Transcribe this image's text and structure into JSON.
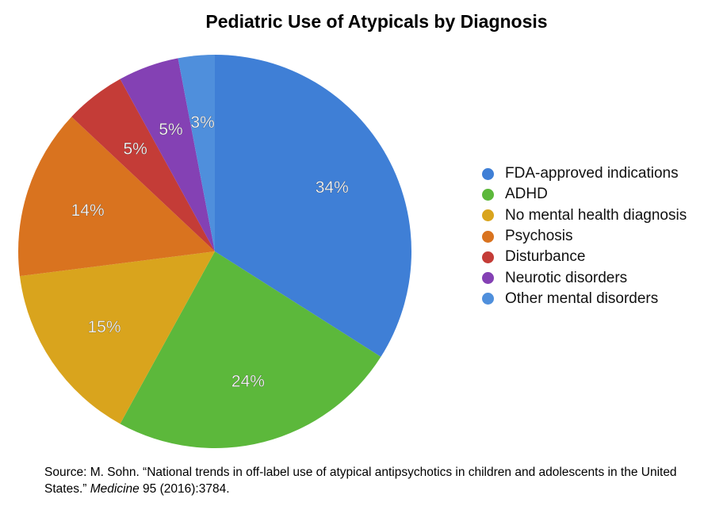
{
  "chart_data": {
    "type": "pie",
    "title": "Pediatric Use of Atypicals by Diagnosis",
    "slices": [
      {
        "label": "FDA-approved indications",
        "value": 34,
        "display": "34%",
        "color": "#3f7fd6"
      },
      {
        "label": "ADHD",
        "value": 24,
        "display": "24%",
        "color": "#5cb83b"
      },
      {
        "label": "No mental health diagnosis",
        "value": 15,
        "display": "15%",
        "color": "#d9a41d"
      },
      {
        "label": "Psychosis",
        "value": 14,
        "display": "14%",
        "color": "#d9731f"
      },
      {
        "label": "Disturbance",
        "value": 5,
        "display": "5%",
        "color": "#c43c37"
      },
      {
        "label": "Neurotic disorders",
        "value": 5,
        "display": "5%",
        "color": "#8441b4"
      },
      {
        "label": "Other mental disorders",
        "value": 3,
        "display": "3%",
        "color": "#4f8fdc"
      }
    ],
    "legend_position": "right"
  },
  "source": {
    "prefix": "Source:  M. Sohn. “National trends in off-label use of atypical antipsychotics in children and adolescents in the United States.” ",
    "journal": "Medicine",
    "suffix": " 95 (2016):3784."
  }
}
